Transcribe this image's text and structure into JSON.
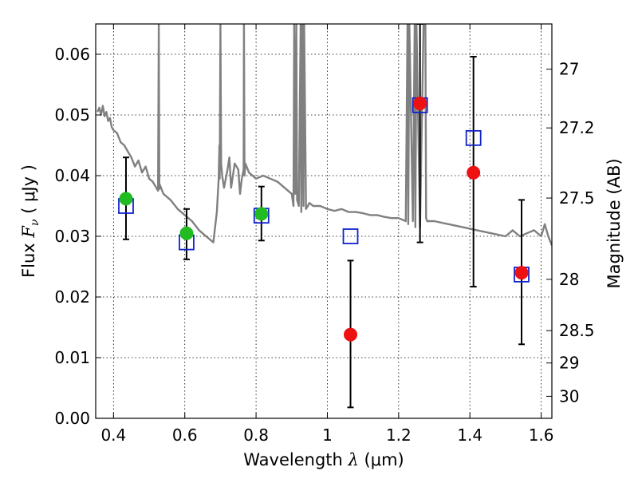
{
  "chart_data": {
    "type": "scatter",
    "title": "",
    "xlabel": "Wavelength",
    "xlabel_symbol": "λ",
    "xlabel_unit": "(μm)",
    "ylabel": "Flux",
    "ylabel_symbol": "F",
    "ylabel_subscript": "ν",
    "ylabel_unit": "( μJy )",
    "y2label": "Magnitude (AB)",
    "xlim": [
      0.35,
      1.63
    ],
    "ylim": [
      0.0,
      0.065
    ],
    "grid": true,
    "xticks": [
      0.4,
      0.6,
      0.8,
      1.0,
      1.2,
      1.4,
      1.6
    ],
    "xtick_labels": [
      "0.4",
      "0.6",
      "0.8",
      "1",
      "1.2",
      "1.4",
      "1.6"
    ],
    "yticks": [
      0.0,
      0.01,
      0.02,
      0.03,
      0.04,
      0.05,
      0.06
    ],
    "ytick_labels": [
      "0.00",
      "0.01",
      "0.02",
      "0.03",
      "0.04",
      "0.05",
      "0.06"
    ],
    "mag_ticks": [
      {
        "label": "27",
        "value": 27.0
      },
      {
        "label": "27.2",
        "value": 27.2
      },
      {
        "label": "27.5",
        "value": 27.5
      },
      {
        "label": "28",
        "value": 28.0
      },
      {
        "label": "28.5",
        "value": 28.5
      },
      {
        "label": "29",
        "value": 29.0
      },
      {
        "label": "30",
        "value": 30.0
      }
    ],
    "series": [
      {
        "name": "model spectrum",
        "kind": "line",
        "color": "#808080",
        "x": [
          0.355,
          0.36,
          0.365,
          0.37,
          0.375,
          0.38,
          0.385,
          0.39,
          0.395,
          0.4,
          0.41,
          0.42,
          0.43,
          0.44,
          0.45,
          0.46,
          0.47,
          0.48,
          0.49,
          0.5,
          0.51,
          0.52,
          0.525,
          0.527,
          0.5285,
          0.53,
          0.54,
          0.56,
          0.58,
          0.6,
          0.62,
          0.64,
          0.66,
          0.68,
          0.69,
          0.695,
          0.697,
          0.698,
          0.7,
          0.702,
          0.705,
          0.71,
          0.72,
          0.725,
          0.73,
          0.74,
          0.75,
          0.755,
          0.76,
          0.765,
          0.766,
          0.7675,
          0.77,
          0.78,
          0.8,
          0.82,
          0.84,
          0.86,
          0.88,
          0.9,
          0.905,
          0.907,
          0.91,
          0.913,
          0.915,
          0.92,
          0.925,
          0.927,
          0.93,
          0.933,
          0.935,
          0.94,
          0.95,
          0.96,
          0.98,
          1.0,
          1.02,
          1.04,
          1.06,
          1.08,
          1.1,
          1.12,
          1.14,
          1.16,
          1.18,
          1.2,
          1.22,
          1.225,
          1.227,
          1.23,
          1.24,
          1.245,
          1.247,
          1.25,
          1.26,
          1.27,
          1.275,
          1.277,
          1.28,
          1.3,
          1.34,
          1.38,
          1.42,
          1.46,
          1.5,
          1.52,
          1.54,
          1.56,
          1.58,
          1.6,
          1.61,
          1.62,
          1.63
        ],
        "y": [
          0.0505,
          0.0512,
          0.05,
          0.0515,
          0.0498,
          0.0505,
          0.049,
          0.0495,
          0.048,
          0.0475,
          0.047,
          0.0455,
          0.045,
          0.044,
          0.043,
          0.0415,
          0.0425,
          0.0405,
          0.0415,
          0.0395,
          0.039,
          0.038,
          0.0375,
          0.065,
          0.0378,
          0.0385,
          0.037,
          0.036,
          0.0345,
          0.0335,
          0.0325,
          0.031,
          0.03,
          0.029,
          0.034,
          0.0395,
          0.045,
          0.0395,
          0.065,
          0.042,
          0.04,
          0.038,
          0.041,
          0.043,
          0.038,
          0.042,
          0.041,
          0.037,
          0.0395,
          0.041,
          0.065,
          0.04,
          0.042,
          0.0405,
          0.0395,
          0.04,
          0.0395,
          0.039,
          0.038,
          0.037,
          0.035,
          0.065,
          0.037,
          0.065,
          0.036,
          0.035,
          0.065,
          0.034,
          0.065,
          0.035,
          0.065,
          0.0345,
          0.0355,
          0.035,
          0.035,
          0.0345,
          0.0342,
          0.0345,
          0.034,
          0.034,
          0.0338,
          0.0335,
          0.0335,
          0.0332,
          0.033,
          0.033,
          0.0325,
          0.065,
          0.032,
          0.065,
          0.0325,
          0.065,
          0.0315,
          0.065,
          0.0315,
          0.065,
          0.065,
          0.033,
          0.0325,
          0.0325,
          0.032,
          0.0315,
          0.031,
          0.0305,
          0.03,
          0.031,
          0.03,
          0.0305,
          0.031,
          0.03,
          0.032,
          0.03,
          0.0285
        ]
      },
      {
        "name": "observed (green)",
        "kind": "points",
        "color": "#22bb22",
        "x": [
          0.435,
          0.605,
          0.815
        ],
        "y": [
          0.0362,
          0.0305,
          0.0337
        ],
        "yerr_low": [
          0.0295,
          0.0262,
          0.0293
        ],
        "yerr_high": [
          0.043,
          0.0345,
          0.0382
        ]
      },
      {
        "name": "observed (red)",
        "kind": "points",
        "color": "#ee1111",
        "x": [
          1.065,
          1.26,
          1.41,
          1.545
        ],
        "y": [
          0.0138,
          0.0519,
          0.0405,
          0.024
        ],
        "yerr_low": [
          0.0018,
          0.029,
          0.0217,
          0.0122
        ],
        "yerr_high": [
          0.026,
          0.065,
          0.0596,
          0.036
        ]
      },
      {
        "name": "model bandpass (blue squares)",
        "kind": "squares",
        "color": "#1122cc",
        "x": [
          0.435,
          0.605,
          0.815,
          1.065,
          1.26,
          1.41,
          1.545
        ],
        "y": [
          0.035,
          0.029,
          0.0334,
          0.03,
          0.0516,
          0.0462,
          0.0237
        ]
      }
    ]
  }
}
